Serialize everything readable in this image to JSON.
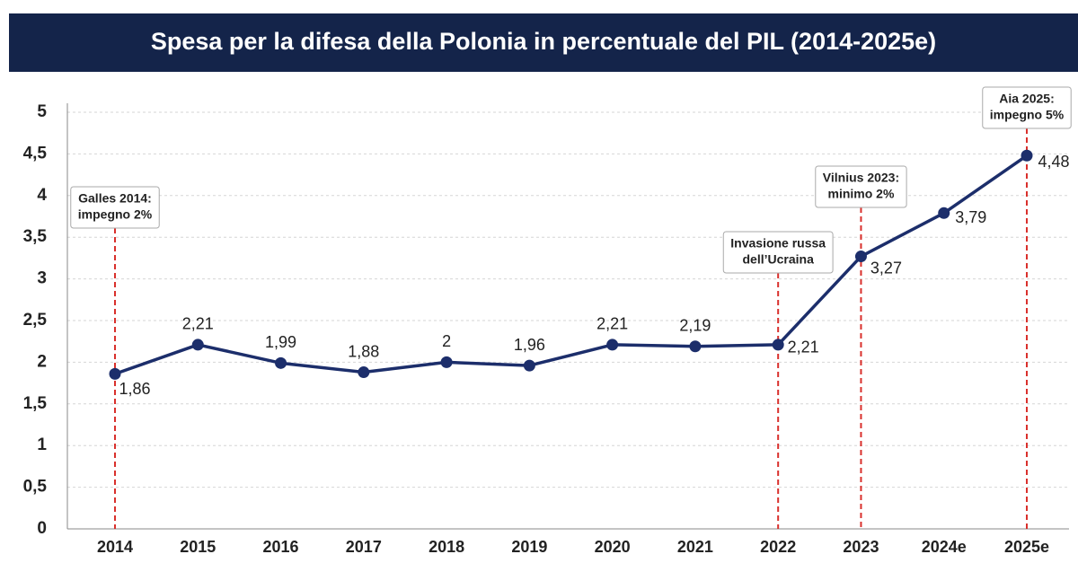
{
  "chart_data": {
    "type": "line",
    "title": "Spesa per la difesa della Polonia in percentuale del PIL (2014-2025e)",
    "categories": [
      "2014",
      "2015",
      "2016",
      "2017",
      "2018",
      "2019",
      "2020",
      "2021",
      "2022",
      "2023",
      "2024e",
      "2025e"
    ],
    "series": [
      {
        "name": "Spesa per la difesa (% PIL)",
        "color": "#1c2e6b",
        "values": [
          1.86,
          2.21,
          1.99,
          1.88,
          2,
          1.96,
          2.21,
          2.19,
          2.21,
          3.27,
          3.79,
          4.48
        ],
        "value_labels": [
          "1,86",
          "2,21",
          "1,99",
          "1,88",
          "2",
          "1,96",
          "2,21",
          "2,19",
          "2,21",
          "3,27",
          "3,79",
          "4,48"
        ]
      }
    ],
    "ylim": [
      0,
      5
    ],
    "yticks": [
      0,
      {
        "value": 0.5,
        "label": "0,5"
      },
      1,
      {
        "value": 1.5,
        "label": "1,5"
      },
      2,
      {
        "value": 2.5,
        "label": "2,5"
      },
      3,
      {
        "value": 3.5,
        "label": "3,5"
      },
      4,
      {
        "value": 4.5,
        "label": "4,5"
      },
      5
    ],
    "grid": true,
    "annotations": [
      {
        "x": "2014",
        "lines": [
          "Galles 2014:",
          "impegno 2%"
        ],
        "color": "#d9302c"
      },
      {
        "x": "2022",
        "lines": [
          "Invasione russa",
          "dell’Ucraina"
        ],
        "color": "#d9302c"
      },
      {
        "x": "2023",
        "lines": [
          "Vilnius 2023:",
          "minimo 2%"
        ],
        "color": "#d9302c"
      },
      {
        "x": "2025e",
        "lines": [
          "Aia 2025:",
          "impegno 5%"
        ],
        "color": "#d9302c"
      }
    ]
  }
}
